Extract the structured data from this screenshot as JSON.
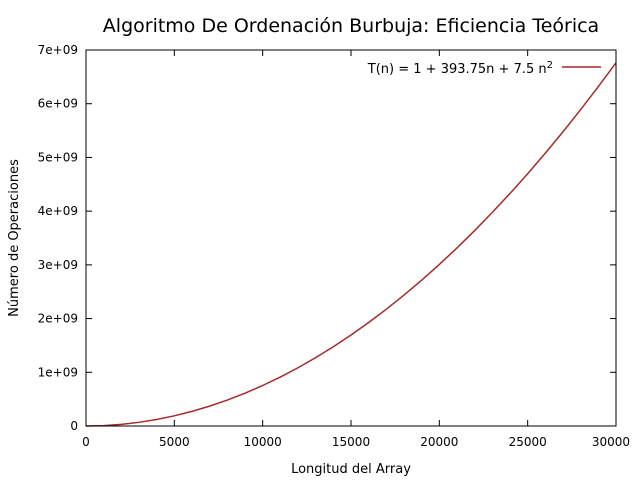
{
  "chart_data": {
    "type": "line",
    "title": "Algoritmo De Ordenación Burbuja: Eficiencia Teórica",
    "xlabel": "Longitud del Array",
    "ylabel": "Número de Operaciones",
    "xlim": [
      0,
      30000
    ],
    "ylim": [
      0,
      7000000000
    ],
    "x_ticks": [
      0,
      5000,
      10000,
      15000,
      20000,
      25000,
      30000
    ],
    "x_tick_labels": [
      "0",
      "5000",
      "10000",
      "15000",
      "20000",
      "25000",
      "30000"
    ],
    "y_ticks": [
      0,
      1000000000,
      2000000000,
      3000000000,
      4000000000,
      5000000000,
      6000000000,
      7000000000
    ],
    "y_tick_labels": [
      "0",
      "1e+09",
      "2e+09",
      "3e+09",
      "4e+09",
      "5e+09",
      "6e+09",
      "7e+09"
    ],
    "grid": false,
    "legend_position": "top-right",
    "legend": {
      "label_main": "T(n) = 1 + 393.75n + 7.5 n",
      "label_sup": "2"
    },
    "series": [
      {
        "name": "T(n) = 1 + 393.75n + 7.5 n2",
        "color": "#a52a2a",
        "x": [
          0,
          1000,
          2000,
          3000,
          4000,
          5000,
          6000,
          7000,
          8000,
          9000,
          10000,
          11000,
          12000,
          13000,
          14000,
          15000,
          16000,
          17000,
          18000,
          19000,
          20000,
          21000,
          22000,
          23000,
          24000,
          25000,
          26000,
          27000,
          28000,
          29000,
          30000
        ],
        "y": [
          1,
          7893751,
          30787501,
          68681251,
          121575001,
          189468751,
          272362501,
          370256251,
          483150001,
          611043751,
          753937501,
          911831251,
          1084725001,
          1272618751,
          1475512501,
          1693406251,
          1926300001,
          2174193751,
          2437087501,
          2714981251,
          3007875001,
          3315768751,
          3638662501,
          3976556251,
          4329450001,
          4697343751,
          5080237501,
          5478131251,
          5891025001,
          6318918751,
          6761812501
        ]
      }
    ]
  }
}
